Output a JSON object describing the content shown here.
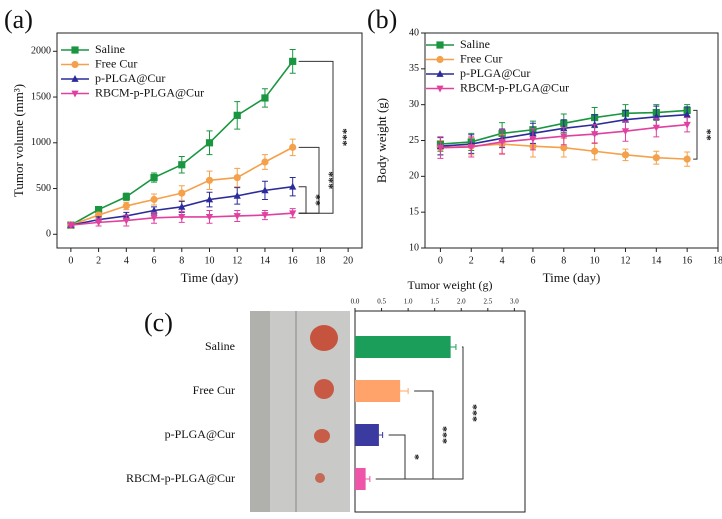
{
  "chart_data": [
    {
      "type": "line",
      "panel_label": "(a)",
      "x_label": "Time (day)",
      "y_label": "Tumor volume (mm³)",
      "x": [
        0,
        2,
        4,
        6,
        8,
        10,
        12,
        14,
        16
      ],
      "xlim": [
        -1,
        21
      ],
      "xticks": [
        0,
        2,
        4,
        6,
        8,
        10,
        12,
        14,
        16,
        18,
        20
      ],
      "ylim": [
        -150,
        2200
      ],
      "yticks": [
        0,
        500,
        1000,
        1500,
        2000
      ],
      "legend": "upper left",
      "series": [
        {
          "name": "Saline",
          "color": "#1a9641",
          "marker": "square",
          "values": [
            100,
            270,
            410,
            620,
            760,
            1000,
            1300,
            1490,
            1890
          ],
          "errors": [
            20,
            30,
            40,
            50,
            90,
            130,
            150,
            100,
            130
          ]
        },
        {
          "name": "Free Cur",
          "color": "#f5a04a",
          "marker": "circle",
          "values": [
            100,
            210,
            310,
            380,
            450,
            590,
            620,
            790,
            950
          ],
          "errors": [
            20,
            30,
            40,
            60,
            80,
            100,
            100,
            80,
            90
          ]
        },
        {
          "name": "p-PLGA@Cur",
          "color": "#2b2b9b",
          "marker": "triangle-up",
          "values": [
            100,
            160,
            200,
            260,
            300,
            380,
            420,
            480,
            520
          ],
          "errors": [
            20,
            30,
            40,
            40,
            60,
            80,
            90,
            100,
            100
          ]
        },
        {
          "name": "RBCM-p-PLGA@Cur",
          "color": "#e040a0",
          "marker": "triangle-down",
          "values": [
            100,
            130,
            150,
            180,
            190,
            190,
            200,
            210,
            230
          ],
          "errors": [
            20,
            40,
            60,
            60,
            60,
            70,
            60,
            50,
            50
          ]
        }
      ],
      "annotations": [
        "***",
        "***",
        "**"
      ]
    },
    {
      "type": "line",
      "panel_label": "(b)",
      "x_label": "Time (day)",
      "y_label": "Body weight (g)",
      "x": [
        0,
        2,
        4,
        6,
        8,
        10,
        12,
        14,
        16
      ],
      "xlim": [
        -1,
        18
      ],
      "xticks": [
        0,
        2,
        4,
        6,
        8,
        10,
        12,
        14,
        16,
        18
      ],
      "ylim": [
        10,
        40
      ],
      "yticks": [
        10,
        15,
        20,
        25,
        30,
        35,
        40
      ],
      "legend": "upper left",
      "series": [
        {
          "name": "Saline",
          "color": "#1a9641",
          "marker": "square",
          "values": [
            24.5,
            24.8,
            26,
            26.5,
            27.4,
            28.2,
            28.8,
            28.9,
            29.2
          ],
          "errors": [
            1,
            1.2,
            1.5,
            1.2,
            1.3,
            1.4,
            1.2,
            1.1,
            0.8
          ]
        },
        {
          "name": "Free Cur",
          "color": "#f5a04a",
          "marker": "circle",
          "values": [
            24,
            24.2,
            24.5,
            24.2,
            24,
            23.5,
            23,
            22.6,
            22.4
          ],
          "errors": [
            1,
            1.2,
            1.3,
            1.5,
            1.3,
            1.2,
            0.8,
            0.9,
            1
          ]
        },
        {
          "name": "p-PLGA@Cur",
          "color": "#2b2b9b",
          "marker": "triangle-up",
          "values": [
            24.2,
            24.5,
            25.3,
            26,
            26.7,
            27.2,
            27.9,
            28.3,
            28.6
          ],
          "errors": [
            1.2,
            1.3,
            1.3,
            1.4,
            1.2,
            1.4,
            1.3,
            1.5,
            1.1
          ]
        },
        {
          "name": "RBCM-p-PLGA@Cur",
          "color": "#e040a0",
          "marker": "triangle-down",
          "values": [
            24,
            24.1,
            24.8,
            25.2,
            25.6,
            25.9,
            26.3,
            26.8,
            27.2
          ],
          "errors": [
            1.5,
            1.4,
            1.7,
            1.5,
            1.2,
            1.3,
            1.4,
            1.3,
            1
          ]
        }
      ],
      "annotations": [
        "**"
      ]
    },
    {
      "type": "hbar",
      "panel_label": "(c)",
      "x_label": "Tumor weight (g)",
      "categories": [
        "Saline",
        "Free Cur",
        "p-PLGA@Cur",
        "RBCM-p-PLGA@Cur"
      ],
      "values": [
        1.8,
        0.85,
        0.45,
        0.2
      ],
      "errors": [
        0.1,
        0.15,
        0.07,
        0.08
      ],
      "colors": [
        "#1a9e5a",
        "#ffa36b",
        "#3a3aa0",
        "#ee55a8"
      ],
      "xlim": [
        0,
        3.2
      ],
      "xticks": [
        {
          "value": 0,
          "label": "0.0"
        },
        0.5,
        {
          "value": 1,
          "label": "1.0"
        },
        1.5,
        {
          "value": 2,
          "label": "2.0"
        },
        2.5,
        {
          "value": 3,
          "label": "3.0"
        }
      ],
      "annotations": [
        "***",
        "***",
        "*"
      ]
    }
  ]
}
